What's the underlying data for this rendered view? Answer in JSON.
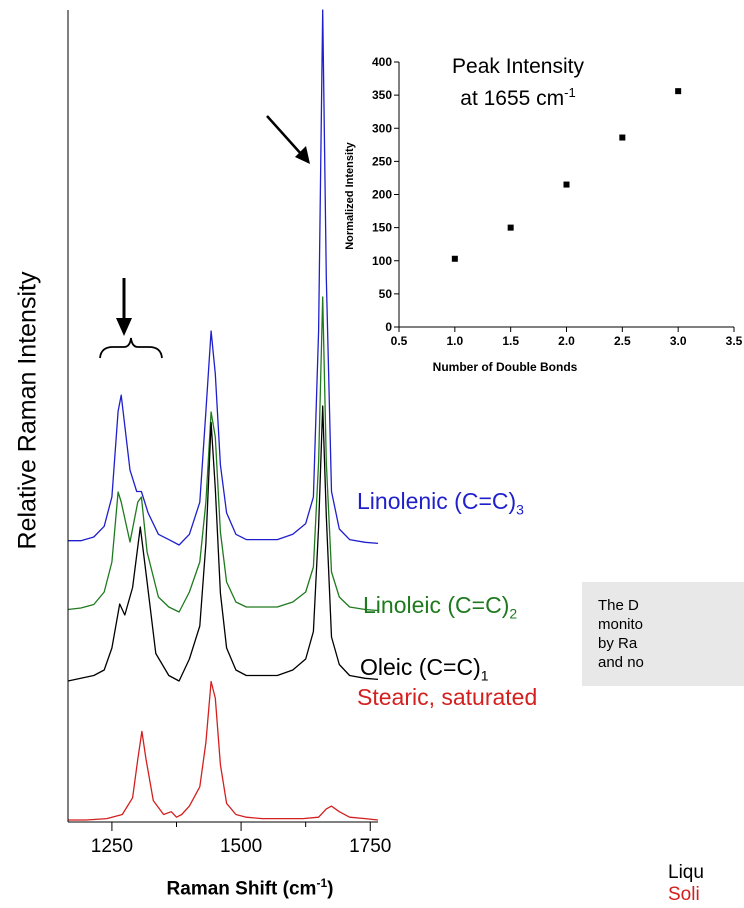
{
  "chart_data": [
    {
      "type": "line",
      "xlabel_main": "Raman Shift (cm",
      "xlabel_sup": "-1",
      "xlabel_end": ")",
      "ylabel": "Relative Raman Intensity",
      "xlim": [
        1165,
        1765
      ],
      "xticks": [
        "1250",
        "1500",
        "1750"
      ],
      "xtick_values": [
        1250,
        1500,
        1750
      ],
      "series": [
        {
          "name": "Linolenic",
          "label_main": "Linolenic (C=C)",
          "label_sub": "3",
          "color": "#1f1fcc",
          "x": [
            1165,
            1190,
            1215,
            1235,
            1250,
            1262,
            1268,
            1285,
            1298,
            1307,
            1320,
            1340,
            1360,
            1380,
            1400,
            1420,
            1432,
            1442,
            1450,
            1460,
            1472,
            1490,
            1510,
            1540,
            1570,
            1600,
            1625,
            1640,
            1650,
            1658,
            1665,
            1675,
            1690,
            1710,
            1740,
            1765
          ],
          "y": [
            0.8,
            0.8,
            1.5,
            3.5,
            9,
            25,
            28,
            14,
            10,
            10,
            6,
            2,
            1,
            0,
            2,
            8,
            25,
            40,
            32,
            15,
            6,
            2,
            1,
            1,
            1,
            2,
            4,
            9,
            40,
            100,
            50,
            10,
            3,
            1,
            0.5,
            0.3
          ]
        },
        {
          "name": "Linoleic",
          "label_main": "Linoleic (C=C)",
          "label_sub": "2",
          "color": "#1f7a1f",
          "x": [
            1165,
            1190,
            1215,
            1235,
            1250,
            1262,
            1268,
            1285,
            1300,
            1307,
            1318,
            1340,
            1360,
            1380,
            1400,
            1420,
            1432,
            1442,
            1450,
            1460,
            1472,
            1490,
            1510,
            1540,
            1570,
            1600,
            1625,
            1640,
            1650,
            1658,
            1665,
            1675,
            1690,
            1710,
            1740,
            1765
          ],
          "y": [
            0.5,
            0.8,
            1.5,
            4,
            10,
            24,
            22,
            14,
            22,
            23,
            12,
            3,
            1,
            0,
            4,
            10,
            22,
            40,
            35,
            16,
            6,
            2,
            1,
            1,
            1,
            2,
            4,
            9,
            30,
            63,
            30,
            8,
            3,
            1,
            0.5,
            0.3
          ]
        },
        {
          "name": "Oleic",
          "label_main": "Oleic (C=C)",
          "label_sub": "1",
          "color": "#000000",
          "x": [
            1165,
            1190,
            1215,
            1235,
            1250,
            1265,
            1275,
            1290,
            1305,
            1318,
            1335,
            1360,
            1380,
            1400,
            1420,
            1432,
            1442,
            1450,
            1460,
            1472,
            1490,
            1510,
            1540,
            1570,
            1600,
            1625,
            1640,
            1650,
            1658,
            1665,
            1675,
            1690,
            1710,
            1740,
            1765
          ],
          "y": [
            0,
            0.5,
            1,
            2,
            6,
            14,
            12,
            17,
            28,
            18,
            5,
            1,
            0,
            4,
            10,
            25,
            47,
            35,
            16,
            6,
            2,
            1,
            1,
            1,
            2,
            4,
            9,
            28,
            50,
            30,
            8,
            3,
            1,
            0.5,
            0.3
          ]
        },
        {
          "name": "Stearic",
          "label_main": "Stearic, saturated",
          "label_sub": "",
          "color": "#d41f1f",
          "x": [
            1165,
            1200,
            1240,
            1270,
            1290,
            1300,
            1308,
            1316,
            1330,
            1350,
            1365,
            1375,
            1385,
            1400,
            1420,
            1432,
            1442,
            1450,
            1460,
            1472,
            1490,
            1510,
            1540,
            1580,
            1620,
            1650,
            1665,
            1675,
            1690,
            1710,
            1740,
            1765
          ],
          "y": [
            0,
            0,
            0.5,
            2,
            8,
            22,
            32,
            22,
            7,
            2,
            3,
            1,
            2,
            5,
            12,
            28,
            50,
            44,
            20,
            6,
            2,
            1,
            0.5,
            0.5,
            0.5,
            1,
            4,
            5,
            3,
            1,
            0.5,
            0
          ]
        }
      ]
    },
    {
      "type": "scatter",
      "title_line1": "Peak Intensity",
      "title_line2": "at 1655 cm",
      "title_sup": "-1",
      "xlabel": "Number of Double Bonds",
      "ylabel": "Normalized Intensity",
      "xlim": [
        0.5,
        3.5
      ],
      "ylim": [
        0,
        400
      ],
      "xticks": [
        "0.5",
        "1.0",
        "1.5",
        "2.0",
        "2.5",
        "3.0",
        "3.5"
      ],
      "xtick_values": [
        0.5,
        1.0,
        1.5,
        2.0,
        2.5,
        3.0,
        3.5
      ],
      "yticks": [
        "0",
        "50",
        "100",
        "150",
        "200",
        "250",
        "300",
        "350",
        "400"
      ],
      "ytick_values": [
        0,
        50,
        100,
        150,
        200,
        250,
        300,
        350,
        400
      ],
      "x": [
        1.0,
        1.5,
        2.0,
        2.5,
        3.0
      ],
      "y": [
        103,
        150,
        215,
        286,
        356
      ]
    }
  ],
  "annotations": {
    "note_lines": [
      "The D",
      "monito",
      "by Ra",
      "and no"
    ],
    "phase_liquid": "Liqu",
    "phase_solid": "Soli",
    "solid_color": "#d41f1f"
  }
}
